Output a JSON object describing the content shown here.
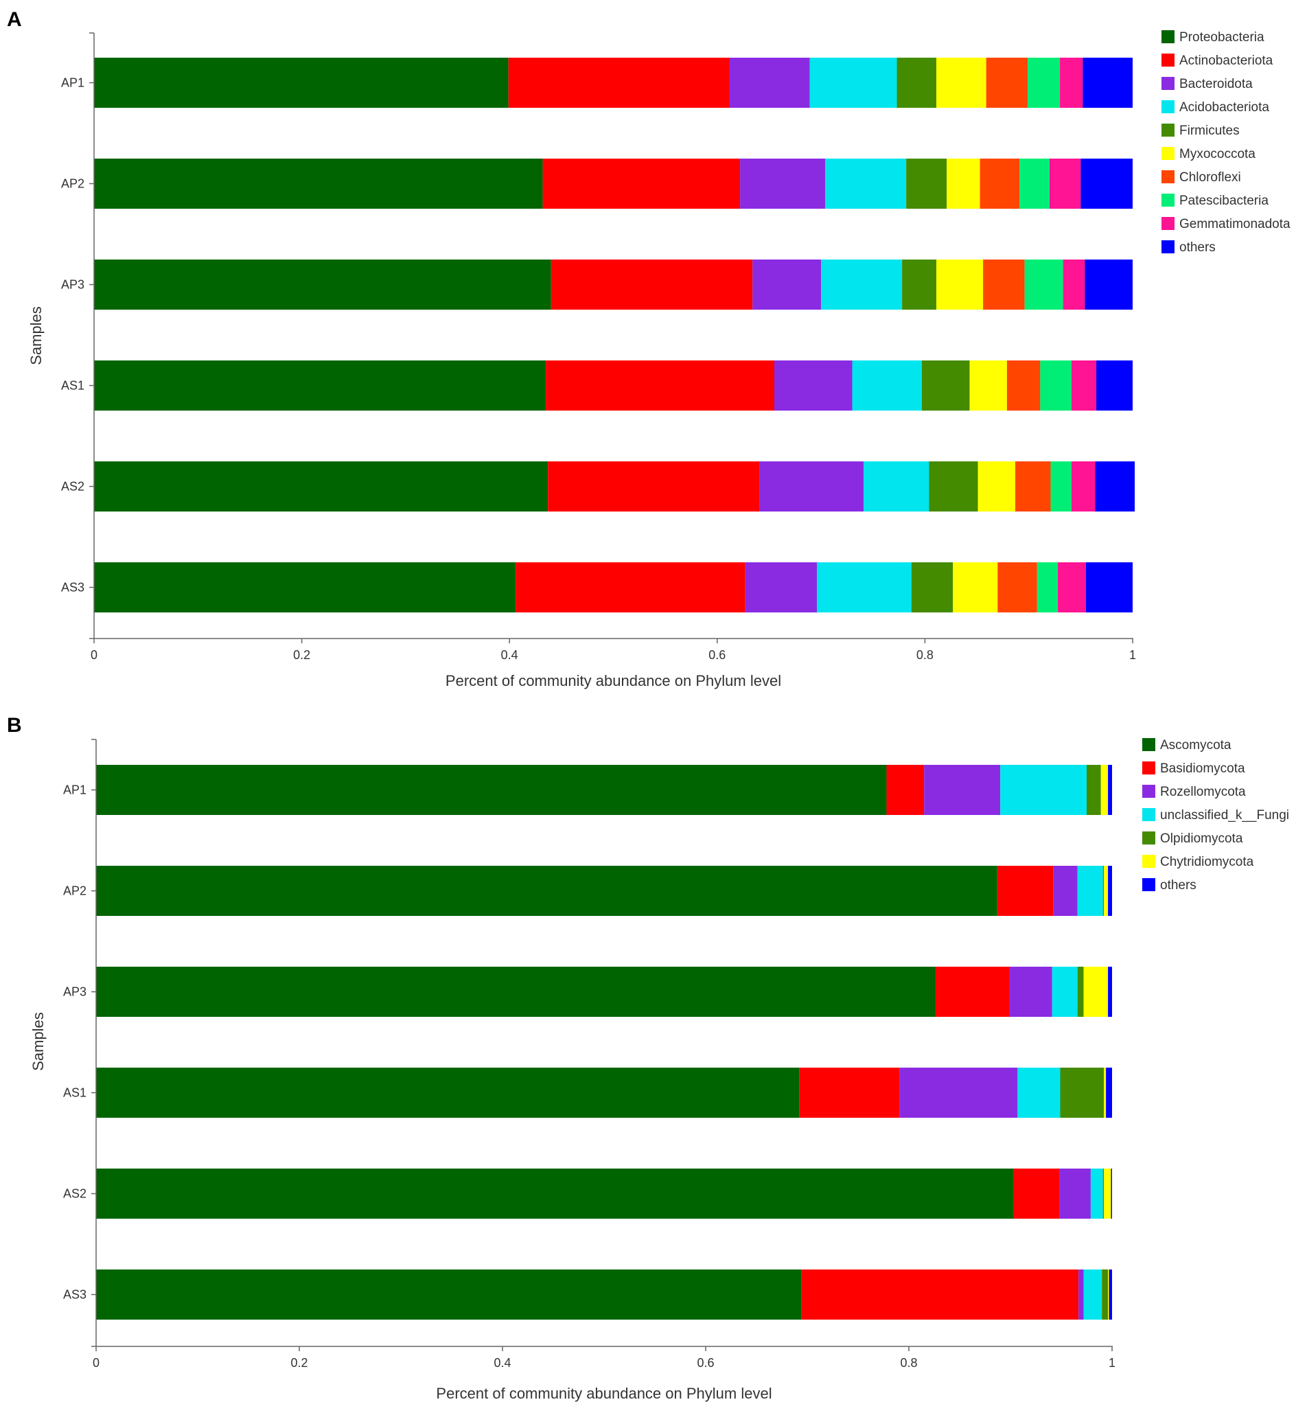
{
  "chart_data": [
    {
      "panel": "A",
      "type": "bar",
      "orientation": "horizontal",
      "stacked": true,
      "categories": [
        "AP1",
        "AP2",
        "AP3",
        "AS1",
        "AS2",
        "AS3"
      ],
      "ylabel": "Samples",
      "xlabel": "Percent of community abundance on Phylum level",
      "xlim": [
        0,
        1
      ],
      "xticks": [
        "0",
        "0.2",
        "0.4",
        "0.6",
        "0.8",
        "1"
      ],
      "legend_position": "top-right",
      "series": [
        {
          "name": "Proteobacteria",
          "color": "#006400",
          "values": [
            0.399,
            0.432,
            0.44,
            0.435,
            0.437,
            0.406
          ]
        },
        {
          "name": "Actinobacteriota",
          "color": "#ff0000",
          "values": [
            0.213,
            0.19,
            0.194,
            0.22,
            0.204,
            0.221
          ]
        },
        {
          "name": "Bacteroidota",
          "color": "#8a2be2",
          "values": [
            0.077,
            0.082,
            0.066,
            0.075,
            0.1,
            0.069
          ]
        },
        {
          "name": "Acidobacteriota",
          "color": "#00e5ee",
          "values": [
            0.084,
            0.078,
            0.078,
            0.067,
            0.063,
            0.091
          ]
        },
        {
          "name": "Firmicutes",
          "color": "#458b00",
          "values": [
            0.038,
            0.039,
            0.033,
            0.046,
            0.047,
            0.04
          ]
        },
        {
          "name": "Myxococcota",
          "color": "#ffff00",
          "values": [
            0.048,
            0.032,
            0.045,
            0.036,
            0.036,
            0.043
          ]
        },
        {
          "name": "Chloroflexi",
          "color": "#ff4500",
          "values": [
            0.04,
            0.038,
            0.04,
            0.032,
            0.034,
            0.038
          ]
        },
        {
          "name": "Patescibacteria",
          "color": "#00ee76",
          "values": [
            0.031,
            0.029,
            0.037,
            0.03,
            0.02,
            0.02
          ]
        },
        {
          "name": "Gemmatimonadota",
          "color": "#ff1493",
          "values": [
            0.022,
            0.03,
            0.021,
            0.024,
            0.023,
            0.027
          ]
        },
        {
          "name": "others",
          "color": "#0000ff",
          "values": [
            0.048,
            0.05,
            0.046,
            0.035,
            0.038,
            0.045
          ]
        }
      ]
    },
    {
      "panel": "B",
      "type": "bar",
      "orientation": "horizontal",
      "stacked": true,
      "categories": [
        "AP1",
        "AP2",
        "AP3",
        "AS1",
        "AS2",
        "AS3"
      ],
      "ylabel": "Samples",
      "xlabel": "Percent of community abundance on Phylum level",
      "xlim": [
        0,
        1
      ],
      "xticks": [
        "0",
        "0.2",
        "0.4",
        "0.6",
        "0.8",
        "1"
      ],
      "legend_position": "top-right",
      "series": [
        {
          "name": "Ascomycota",
          "color": "#006400",
          "values": [
            0.778,
            0.887,
            0.826,
            0.692,
            0.903,
            0.694
          ]
        },
        {
          "name": "Basidiomycota",
          "color": "#ff0000",
          "values": [
            0.037,
            0.055,
            0.073,
            0.099,
            0.045,
            0.273
          ]
        },
        {
          "name": "Rozellomycota",
          "color": "#8a2be2",
          "values": [
            0.075,
            0.024,
            0.042,
            0.116,
            0.031,
            0.005
          ]
        },
        {
          "name": "unclassified_k__Fungi",
          "color": "#00e5ee",
          "values": [
            0.085,
            0.025,
            0.025,
            0.042,
            0.012,
            0.018
          ]
        },
        {
          "name": "Olpidiomycota",
          "color": "#458b00",
          "values": [
            0.014,
            0.001,
            0.006,
            0.043,
            0.001,
            0.006
          ]
        },
        {
          "name": "Chytridiomycota",
          "color": "#ffff00",
          "values": [
            0.007,
            0.004,
            0.024,
            0.002,
            0.007,
            0.001
          ]
        },
        {
          "name": "others",
          "color": "#0000ff",
          "values": [
            0.004,
            0.004,
            0.004,
            0.006,
            0.001,
            0.003
          ]
        }
      ]
    }
  ]
}
